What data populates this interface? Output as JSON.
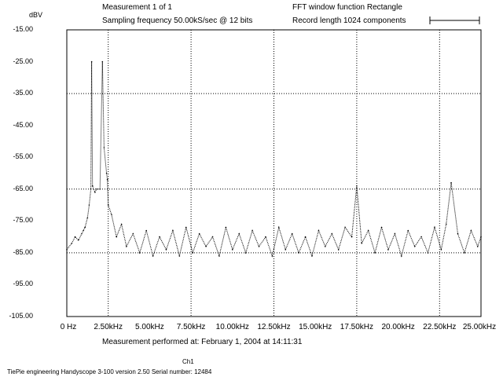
{
  "header": {
    "y_unit": "dBV",
    "measurement": "Measurement 1 of 1",
    "sampling": "Sampling frequency 50.00kS/sec @ 12 bits",
    "fft_window": "FFT window function Rectangle",
    "record_length": "Record length 1024 components"
  },
  "footer": {
    "performed": "Measurement performed at:  February 1, 2004 at 14:11:31",
    "channel": "Ch1",
    "info": "TiePie engineering   Handyscope 3-100  version 2.50  Serial number: 12484"
  },
  "chart_data": {
    "type": "line",
    "title": "",
    "xlabel": "",
    "ylabel": "dBV",
    "xlim": [
      0,
      25000
    ],
    "ylim": [
      -105,
      -15
    ],
    "grid": true,
    "x_ticks": [
      0,
      2500,
      5000,
      7500,
      10000,
      12500,
      15000,
      17500,
      20000,
      22500,
      25000
    ],
    "x_tick_labels": [
      "0 Hz",
      "2.50kHz",
      "5.00kHz",
      "7.50kHz",
      "10.00kHz",
      "12.50kHz",
      "15.00kHz",
      "17.50kHz",
      "20.00kHz",
      "22.50kHz",
      "25.00kHz"
    ],
    "y_ticks": [
      -15,
      -25,
      -35,
      -45,
      -55,
      -65,
      -75,
      -85,
      -95,
      -105
    ],
    "y_tick_labels": [
      "-15.00",
      "-25.00",
      "-35.00",
      "-45.00",
      "-55.00",
      "-65.00",
      "-75.00",
      "-85.00",
      "-95.00",
      "-105.00"
    ],
    "grid_x": [
      2500,
      7500,
      12500,
      17500,
      22500
    ],
    "grid_y": [
      -35,
      -65,
      -85
    ],
    "series": [
      {
        "name": "",
        "color": "#000000",
        "x": [
          0,
          300,
          500,
          700,
          900,
          1000,
          1100,
          1250,
          1350,
          1450,
          1500,
          1550,
          1700,
          1800,
          2000,
          2150,
          2250,
          2400,
          2450,
          2500,
          2700,
          3000,
          3300,
          3600,
          4000,
          4400,
          4800,
          5200,
          5600,
          6000,
          6400,
          6800,
          7200,
          7600,
          8000,
          8400,
          8800,
          9200,
          9600,
          10000,
          10400,
          10800,
          11200,
          11600,
          12000,
          12400,
          12800,
          13200,
          13600,
          14000,
          14400,
          14800,
          15200,
          15600,
          16000,
          16400,
          16800,
          17200,
          17500,
          17800,
          18200,
          18600,
          19000,
          19400,
          19800,
          20200,
          20600,
          21000,
          21400,
          21800,
          22200,
          22600,
          22900,
          23200,
          23600,
          24000,
          24400,
          24800,
          25000
        ],
        "y": [
          -84,
          -82,
          -80,
          -81,
          -79,
          -78,
          -77,
          -74,
          -70,
          -65,
          -25,
          -64,
          -66,
          -65,
          -65,
          -25,
          -52,
          -60,
          -62,
          -70,
          -73,
          -80,
          -76,
          -83,
          -79,
          -85,
          -78,
          -86,
          -80,
          -84,
          -78,
          -86,
          -77,
          -85,
          -79,
          -83,
          -80,
          -86,
          -77,
          -84,
          -79,
          -85,
          -78,
          -83,
          -80,
          -86,
          -77,
          -84,
          -79,
          -85,
          -80,
          -86,
          -78,
          -83,
          -79,
          -84,
          -77,
          -80,
          -64,
          -82,
          -78,
          -85,
          -77,
          -84,
          -79,
          -86,
          -78,
          -83,
          -80,
          -85,
          -77,
          -84,
          -76,
          -63,
          -79,
          -85,
          -78,
          -83,
          -80
        ]
      }
    ]
  }
}
